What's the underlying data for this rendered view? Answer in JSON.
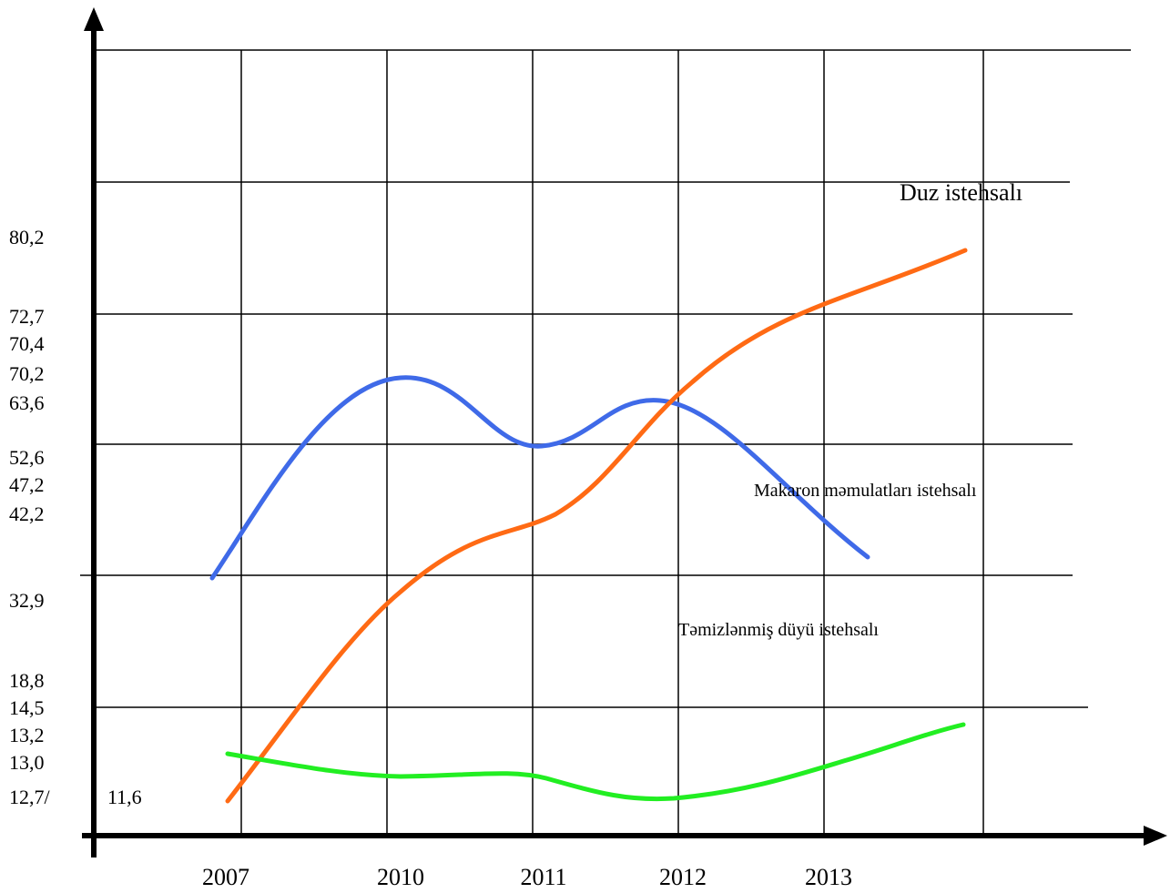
{
  "chart_data": {
    "type": "line",
    "y_labels": [
      "80,2",
      "72,7",
      "70,4",
      "70,2",
      "63,6",
      "52,6",
      "47,2",
      "42,2",
      "32,9",
      "18,8",
      "14,5",
      "13,2",
      "13,0",
      "12,7/"
    ],
    "extra_label": "11,6",
    "categories": [
      "2007",
      "2010",
      "2011",
      "2012",
      "2013"
    ],
    "series": [
      {
        "name": "Duz istehsalı",
        "color": "#ff6a14"
      },
      {
        "name": "Makaron məmulatları istehsalı",
        "color": "#3f6ae8"
      },
      {
        "name": "Təmizlənmiş düyü istehsalı",
        "color": "#22ee22"
      }
    ]
  }
}
